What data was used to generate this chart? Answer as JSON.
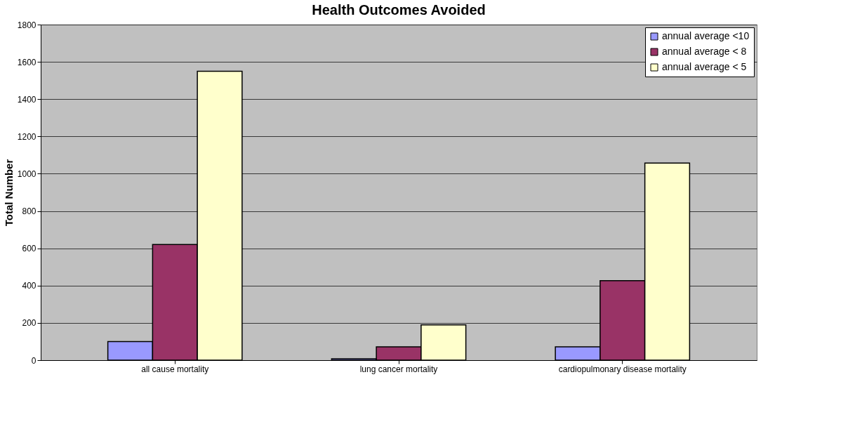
{
  "chart_data": {
    "type": "bar",
    "title": "Health Outcomes Avoided",
    "ylabel": "Total Number",
    "categories": [
      "all cause mortality",
      "lung cancer mortality",
      "cardiopulmonary disease mortality"
    ],
    "series": [
      {
        "name": "annual average <10",
        "color": "#9999ff",
        "values": [
          100,
          8,
          72
        ]
      },
      {
        "name": "annual average < 8",
        "color": "#993366",
        "values": [
          620,
          72,
          426
        ]
      },
      {
        "name": "annual average < 5",
        "color": "#ffffcc",
        "values": [
          1550,
          189,
          1057
        ]
      }
    ],
    "ylim": [
      0,
      1800
    ],
    "yticks": [
      0,
      200,
      400,
      600,
      800,
      1000,
      1200,
      1400,
      1600,
      1800
    ],
    "grid": "y",
    "legend": "top right"
  }
}
